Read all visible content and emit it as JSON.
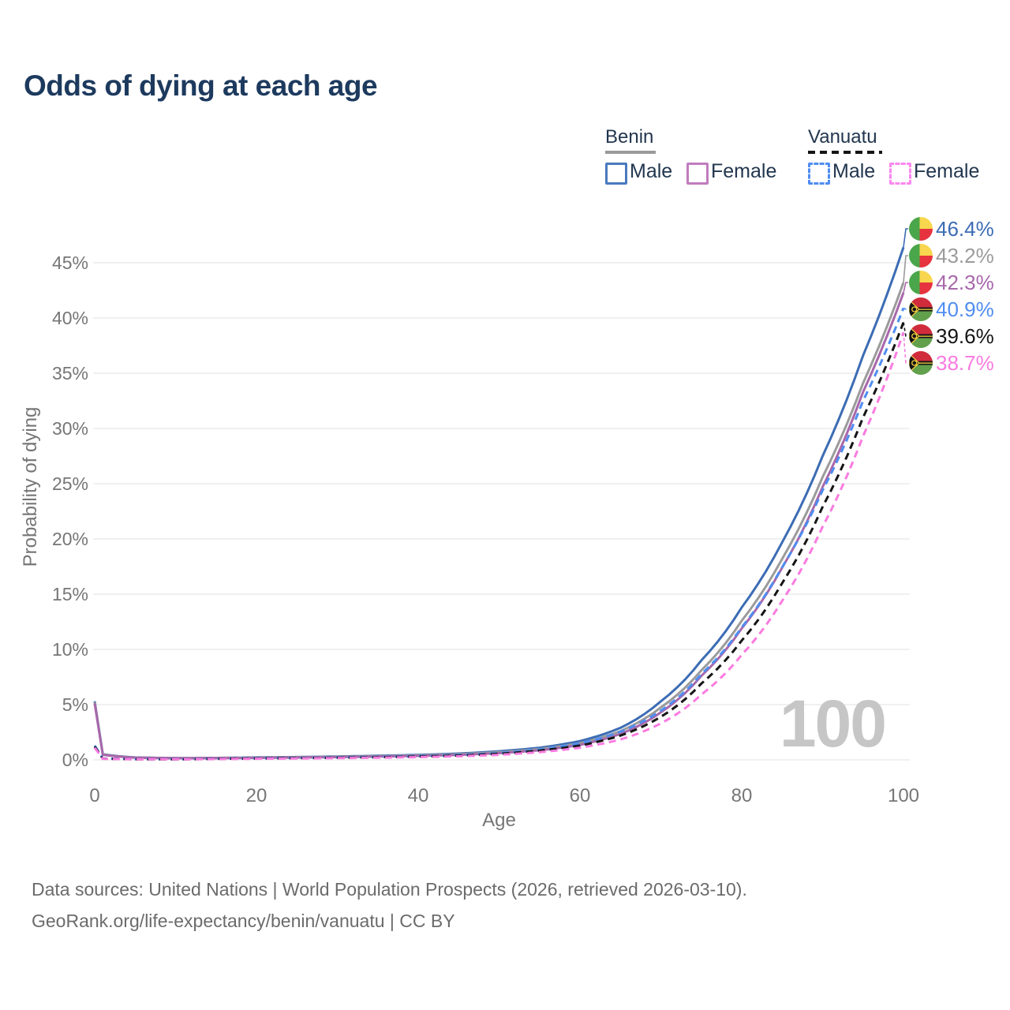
{
  "title": "Odds of dying at each age",
  "legend": {
    "groups": [
      {
        "country": "Benin",
        "line_style": "solid",
        "underline_color": "#9a9a9a",
        "items": [
          {
            "label": "Male",
            "box_color": "#4a79bd"
          },
          {
            "label": "Female",
            "box_color": "#c07cbe"
          }
        ]
      },
      {
        "country": "Vanuatu",
        "line_style": "dashed",
        "underline_color": "#151515",
        "items": [
          {
            "label": "Male",
            "box_color": "#4f8df0"
          },
          {
            "label": "Female",
            "box_color": "#fb86ef"
          }
        ]
      }
    ]
  },
  "watermark": "100",
  "footer": {
    "line1": "Data sources: United Nations | World Population Prospects (2026, retrieved 2026-03-10).",
    "line2": "GeoRank.org/life-expectancy/benin/vanuatu | CC BY"
  },
  "chart_data": {
    "type": "line",
    "title": "Odds of dying at each age",
    "xlabel": "Age",
    "ylabel": "Probability of dying",
    "xlim": [
      0,
      100
    ],
    "ylim": [
      0,
      47
    ],
    "x_ticks": [
      0,
      20,
      40,
      60,
      80,
      100
    ],
    "y_ticks": [
      0,
      5,
      10,
      15,
      20,
      25,
      30,
      35,
      40,
      45
    ],
    "y_tick_suffix": "%",
    "grid": "horizontal",
    "x": [
      0,
      1,
      5,
      10,
      15,
      20,
      25,
      30,
      35,
      40,
      45,
      50,
      55,
      60,
      65,
      70,
      75,
      80,
      85,
      90,
      95,
      100
    ],
    "series": [
      {
        "id": "benin-male",
        "name": "Benin Male",
        "country": "Benin",
        "sex": "Male",
        "flag": "benin",
        "color": "#3c6cb4",
        "line_style": "solid",
        "end_label": "46.4%",
        "end_value": 46.4,
        "values": [
          5.3,
          0.5,
          0.22,
          0.16,
          0.18,
          0.22,
          0.26,
          0.31,
          0.37,
          0.45,
          0.57,
          0.78,
          1.1,
          1.7,
          2.9,
          5.3,
          9.0,
          13.8,
          19.7,
          27.5,
          36.6,
          46.4
        ]
      },
      {
        "id": "benin-all",
        "name": "Benin",
        "country": "Benin",
        "sex": "All",
        "flag": "benin",
        "color": "#9b9b9b",
        "line_style": "solid",
        "end_label": "43.2%",
        "end_value": 43.2,
        "values": [
          5.2,
          0.48,
          0.21,
          0.15,
          0.17,
          0.2,
          0.24,
          0.28,
          0.33,
          0.4,
          0.51,
          0.69,
          0.98,
          1.52,
          2.6,
          4.75,
          8.1,
          12.6,
          18.2,
          25.6,
          34.1,
          43.2
        ]
      },
      {
        "id": "benin-female",
        "name": "Benin Female",
        "country": "Benin",
        "sex": "Female",
        "flag": "benin",
        "color": "#a867ab",
        "line_style": "solid",
        "end_label": "42.3%",
        "end_value": 42.3,
        "values": [
          5.1,
          0.46,
          0.2,
          0.14,
          0.15,
          0.18,
          0.21,
          0.25,
          0.3,
          0.36,
          0.45,
          0.61,
          0.87,
          1.36,
          2.35,
          4.3,
          7.6,
          11.9,
          17.4,
          24.7,
          33.3,
          42.3
        ]
      },
      {
        "id": "vanuatu-male",
        "name": "Vanuatu Male",
        "country": "Vanuatu",
        "sex": "Male",
        "flag": "vanuatu",
        "color": "#4f8df0",
        "line_style": "dashed",
        "end_label": "40.9%",
        "end_value": 40.9,
        "values": [
          1.3,
          0.12,
          0.07,
          0.06,
          0.1,
          0.15,
          0.18,
          0.22,
          0.27,
          0.34,
          0.44,
          0.62,
          0.95,
          1.5,
          2.55,
          4.45,
          7.75,
          12.0,
          17.45,
          24.4,
          32.5,
          40.9
        ]
      },
      {
        "id": "vanuatu-all",
        "name": "Vanuatu",
        "country": "Vanuatu",
        "sex": "All",
        "flag": "vanuatu",
        "color": "#151515",
        "line_style": "dashed",
        "end_label": "39.6%",
        "end_value": 39.6,
        "values": [
          1.2,
          0.11,
          0.06,
          0.055,
          0.09,
          0.13,
          0.16,
          0.19,
          0.24,
          0.3,
          0.39,
          0.55,
          0.84,
          1.3,
          2.2,
          3.9,
          6.9,
          10.8,
          16.0,
          22.9,
          31.0,
          39.6
        ]
      },
      {
        "id": "vanuatu-female",
        "name": "Vanuatu Female",
        "country": "Vanuatu",
        "sex": "Female",
        "flag": "vanuatu",
        "color": "#fa7be0",
        "line_style": "dashed",
        "end_label": "38.7%",
        "end_value": 38.7,
        "values": [
          1.1,
          0.1,
          0.055,
          0.05,
          0.07,
          0.1,
          0.13,
          0.16,
          0.2,
          0.25,
          0.33,
          0.46,
          0.7,
          1.1,
          1.85,
          3.3,
          5.9,
          9.5,
          14.4,
          21.1,
          29.3,
          38.7
        ]
      }
    ],
    "flag_colors": {
      "benin": {
        "green": "#4aa64a",
        "yellow": "#f8d64e",
        "red": "#e6333f"
      },
      "vanuatu": {
        "red": "#d02c3c",
        "green": "#62a04c",
        "black": "#141414",
        "yellow": "#f4cf3e"
      }
    }
  }
}
